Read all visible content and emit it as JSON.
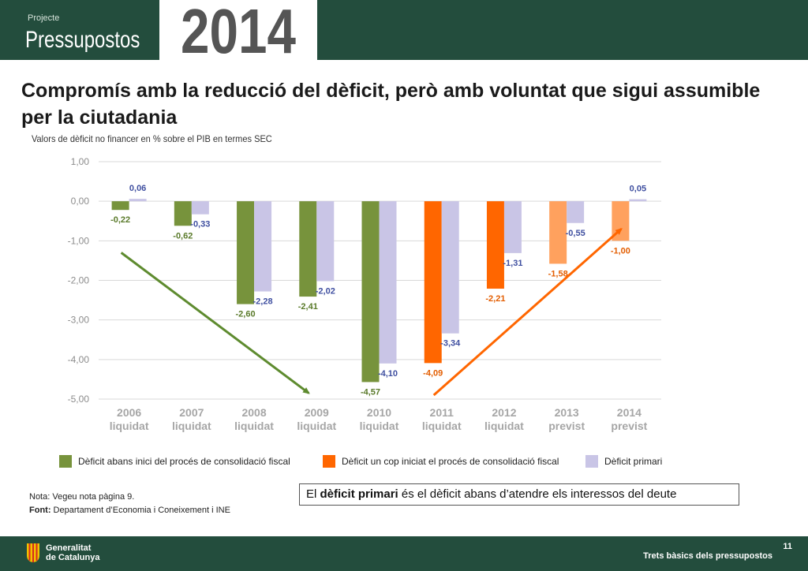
{
  "header": {
    "label": "Projecte",
    "title": "Pressupostos",
    "year": "2014"
  },
  "main_title": "Compromís amb la reducció del dèficit, però amb voluntat que sigui assumible per la ciutadania",
  "subtitle": "Valors de dèficit no financer en % sobre el PIB en termes SEC",
  "legend": [
    {
      "label": "Dèficit abans inici del procés de consolidació fiscal",
      "color": "#77933c"
    },
    {
      "label": "Dèficit un cop iniciat el procés de consolidació fiscal",
      "color": "#ff6600"
    },
    {
      "label": "Dèficit primari",
      "color": "#c9c5e6"
    }
  ],
  "note": "Nota: Vegeu nota pàgina 9.",
  "source_label": "Font:",
  "source_text": "Departament d’Economia i Coneixement  i INE",
  "callout": {
    "pre": "El ",
    "bold": "dèficit primari",
    "post": " és el dèficit abans d’atendre els interessos del deute"
  },
  "footer": {
    "org_line1": "Generalitat",
    "org_line2": "de Catalunya",
    "text": "Trets bàsics dels pressupostos",
    "page": "11"
  },
  "colors": {
    "header_bg": "#234d3d",
    "green": "#77933c",
    "orange_dark": "#ff6600",
    "orange_light": "#ffa15e",
    "lavender": "#c9c5e6",
    "green_label": "#5a7a2a",
    "orange_label": "#e35d00",
    "blue_label": "#3f4fa0"
  },
  "chart_data": {
    "type": "bar",
    "ylim": [
      -5,
      1
    ],
    "yticks": [
      "1,00",
      "0,00",
      "-1,00",
      "-2,00",
      "-3,00",
      "-4,00",
      "-5,00"
    ],
    "ytick_values": [
      1,
      0,
      -1,
      -2,
      -3,
      -4,
      -5
    ],
    "grid": true,
    "categories": [
      [
        "2006",
        "liquidat"
      ],
      [
        "2007",
        "liquidat"
      ],
      [
        "2008",
        "liquidat"
      ],
      [
        "2009",
        "liquidat"
      ],
      [
        "2010",
        "liquidat"
      ],
      [
        "2011",
        "liquidat"
      ],
      [
        "2012",
        "liquidat"
      ],
      [
        "2013",
        "previst"
      ],
      [
        "2014",
        "previst"
      ]
    ],
    "series": [
      {
        "values": [
          -0.22,
          -0.62,
          -2.6,
          -2.41,
          -4.57,
          -4.09,
          -2.21,
          -1.58,
          -1.0
        ],
        "labels": [
          "-0,22",
          "-0,62",
          "-2,60",
          "-2,41",
          "-4,57",
          "-4,09",
          "-2,21",
          "-1,58",
          "-1,00"
        ],
        "colors": [
          "#77933c",
          "#77933c",
          "#77933c",
          "#77933c",
          "#77933c",
          "#ff6600",
          "#ff6600",
          "#ffa15e",
          "#ffa15e"
        ],
        "label_colors": [
          "#5a7a2a",
          "#5a7a2a",
          "#5a7a2a",
          "#5a7a2a",
          "#5a7a2a",
          "#e35d00",
          "#e35d00",
          "#e35d00",
          "#e35d00"
        ]
      },
      {
        "name": "Dèficit primari",
        "values": [
          0.06,
          -0.33,
          -2.28,
          -2.02,
          -4.1,
          -3.34,
          -1.31,
          -0.55,
          0.05
        ],
        "labels": [
          "0,06",
          "-0,33",
          "-2,28",
          "-2,02",
          "-4,10",
          "-3,34",
          "-1,31",
          "-0,55",
          "0,05"
        ],
        "color": "#c9c5e6",
        "label_color": "#3f4fa0"
      }
    ],
    "trend_arrows": [
      {
        "color": "#5e8b2f",
        "from": {
          "x": "2006",
          "y": -1.3
        },
        "to": {
          "x": "2009",
          "y": -4.85
        }
      },
      {
        "color": "#ff6600",
        "from": {
          "x": "2011",
          "y": -4.9
        },
        "to": {
          "x": "2014",
          "y": -0.7
        }
      }
    ]
  }
}
